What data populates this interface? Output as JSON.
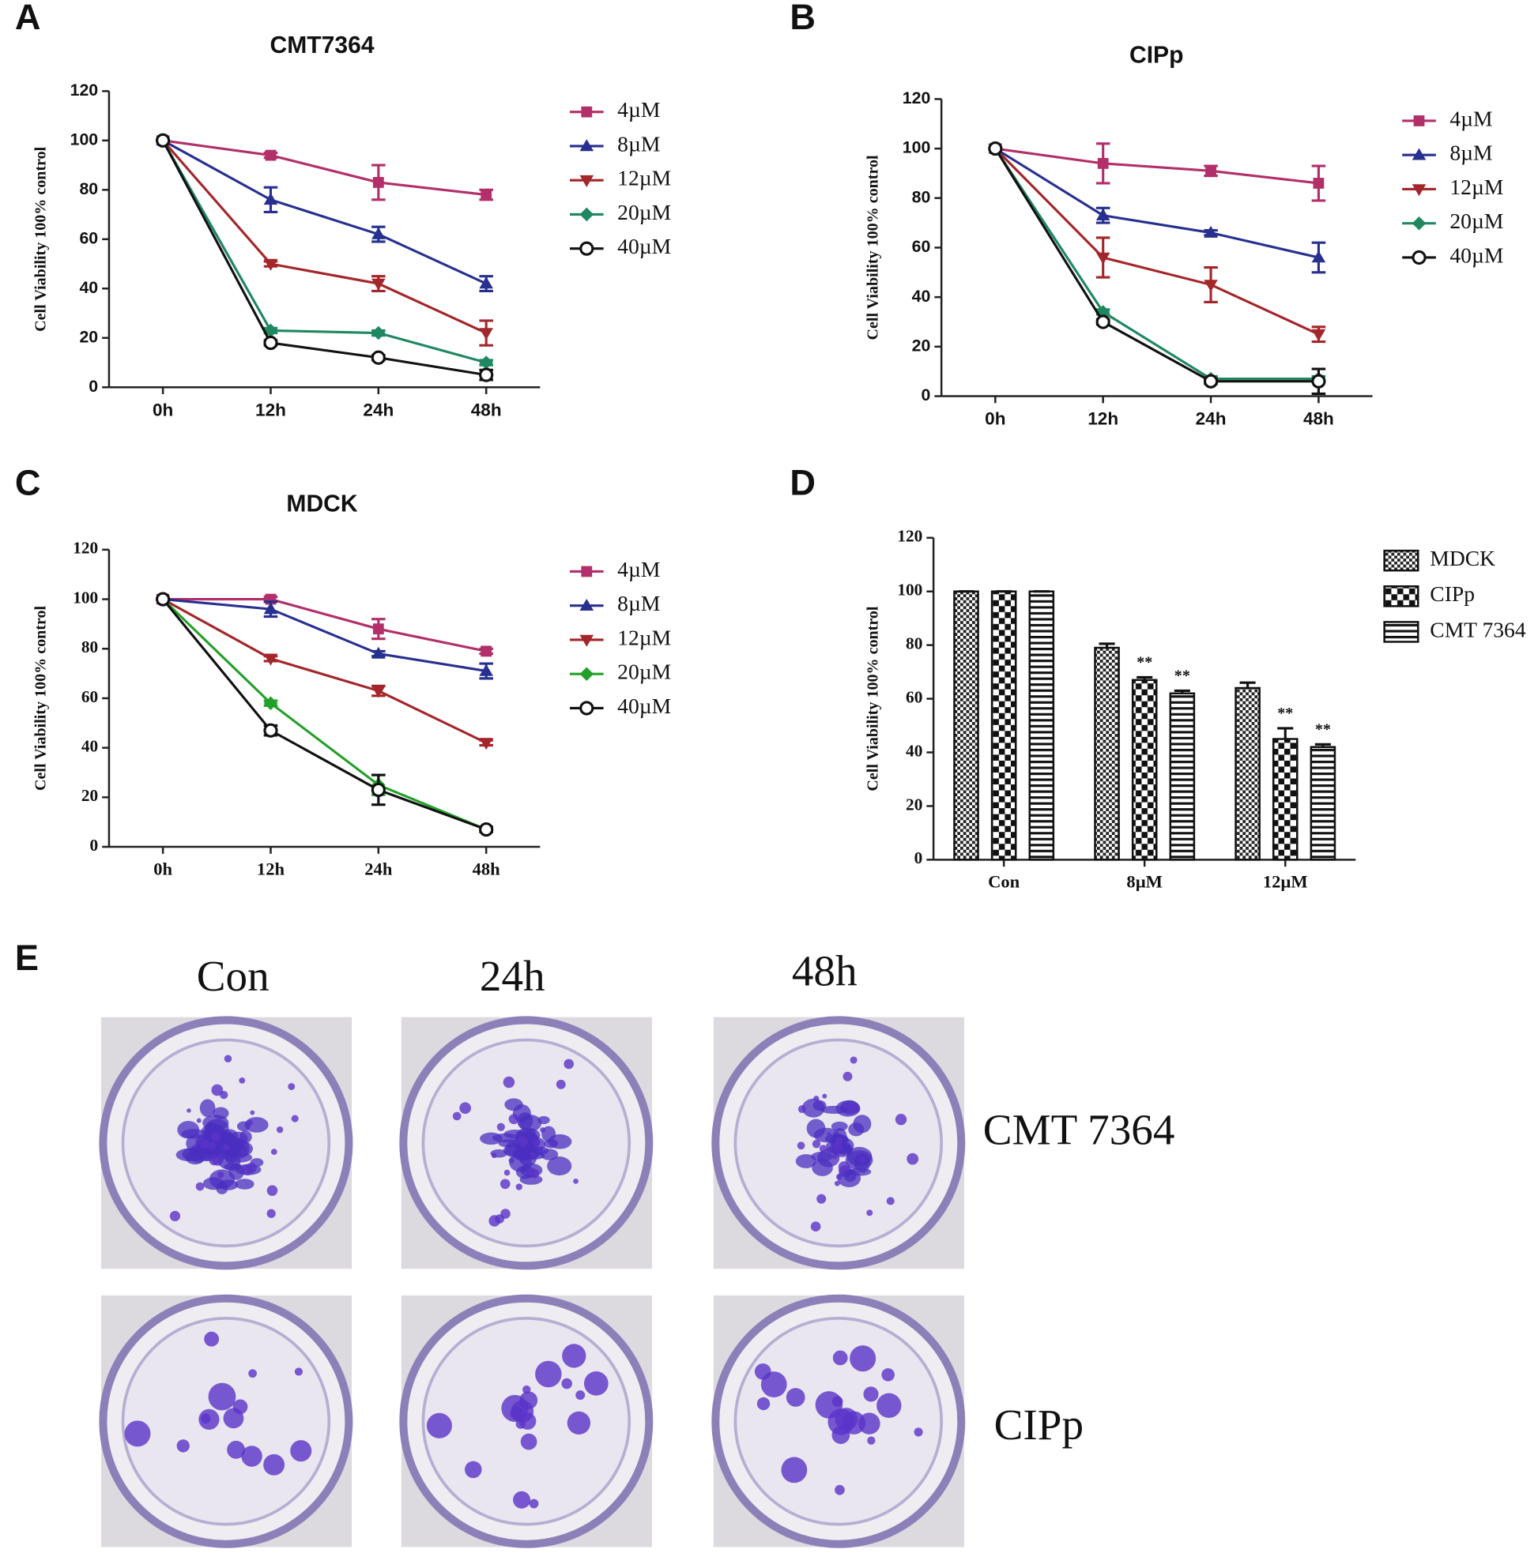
{
  "chart_data": [
    {
      "label": "A",
      "type": "line",
      "title": "CMT7364",
      "y_label": "Cell Viability 100% control",
      "categories": [
        "0h",
        "12h",
        "24h",
        "48h"
      ],
      "ylim": [
        0,
        120
      ],
      "yticks": [
        0,
        20,
        40,
        60,
        80,
        100,
        120
      ],
      "series": [
        {
          "name": "4µM",
          "color": "#b22f6a",
          "marker": "square",
          "values": [
            100,
            94,
            83,
            78
          ],
          "errors": [
            0,
            1,
            7,
            2
          ]
        },
        {
          "name": "8µM",
          "color": "#27308f",
          "marker": "triangle-up",
          "values": [
            100,
            76,
            62,
            42
          ],
          "errors": [
            0,
            5,
            3,
            3
          ]
        },
        {
          "name": "12µM",
          "color": "#a3262a",
          "marker": "triangle-down",
          "values": [
            100,
            50,
            42,
            22
          ],
          "errors": [
            0,
            1,
            3,
            5
          ]
        },
        {
          "name": "20µM",
          "color": "#1f8860",
          "marker": "diamond",
          "values": [
            100,
            23,
            22,
            10
          ],
          "errors": [
            0,
            1,
            1,
            1
          ]
        },
        {
          "name": "40µM",
          "color": "#111111",
          "marker": "circle-open",
          "values": [
            100,
            18,
            12,
            5
          ],
          "errors": [
            0,
            1,
            1,
            2
          ]
        }
      ]
    },
    {
      "label": "B",
      "type": "line",
      "title": "CIPp",
      "y_label": "Cell Viability 100% control",
      "categories": [
        "0h",
        "12h",
        "24h",
        "48h"
      ],
      "ylim": [
        0,
        120
      ],
      "yticks": [
        0,
        20,
        40,
        60,
        80,
        100,
        120
      ],
      "series": [
        {
          "name": "4µM",
          "color": "#b22f6a",
          "marker": "square",
          "values": [
            100,
            94,
            91,
            86
          ],
          "errors": [
            0,
            8,
            2,
            7
          ]
        },
        {
          "name": "8µM",
          "color": "#27308f",
          "marker": "triangle-up",
          "values": [
            100,
            73,
            66,
            56
          ],
          "errors": [
            0,
            3,
            1,
            6
          ]
        },
        {
          "name": "12µM",
          "color": "#a3262a",
          "marker": "triangle-down",
          "values": [
            100,
            56,
            45,
            25
          ],
          "errors": [
            0,
            8,
            7,
            3
          ]
        },
        {
          "name": "20µM",
          "color": "#1f8860",
          "marker": "diamond",
          "values": [
            100,
            34,
            7,
            7
          ],
          "errors": [
            0,
            1,
            1,
            1
          ]
        },
        {
          "name": "40µM",
          "color": "#111111",
          "marker": "circle-open",
          "values": [
            100,
            30,
            6,
            6
          ],
          "errors": [
            0,
            1,
            1,
            5
          ]
        }
      ]
    },
    {
      "label": "C",
      "type": "line",
      "title": "MDCK",
      "y_label": "Cell Viability 100% control",
      "categories": [
        "0h",
        "12h",
        "24h",
        "48h"
      ],
      "ylim": [
        0,
        120
      ],
      "yticks": [
        0,
        20,
        40,
        60,
        80,
        100,
        120
      ],
      "series": [
        {
          "name": "4µM",
          "color": "#b22f6a",
          "marker": "square",
          "values": [
            100,
            100,
            88,
            79
          ],
          "errors": [
            0,
            1,
            4,
            1
          ]
        },
        {
          "name": "8µM",
          "color": "#27308f",
          "marker": "triangle-up",
          "values": [
            100,
            96,
            78,
            71
          ],
          "errors": [
            0,
            3,
            1,
            3
          ]
        },
        {
          "name": "12µM",
          "color": "#a3262a",
          "marker": "triangle-down",
          "values": [
            100,
            76,
            63,
            42
          ],
          "errors": [
            0,
            1,
            2,
            1
          ]
        },
        {
          "name": "20µM",
          "color": "#23a02a",
          "marker": "diamond",
          "values": [
            100,
            58,
            25,
            7
          ],
          "errors": [
            0,
            1,
            4,
            1
          ]
        },
        {
          "name": "40µM",
          "color": "#111111",
          "marker": "circle-open",
          "values": [
            100,
            47,
            23,
            7
          ],
          "errors": [
            0,
            2,
            6,
            1
          ]
        }
      ]
    },
    {
      "label": "D",
      "type": "bar",
      "y_label": "Cell Viability 100% control",
      "categories": [
        "Con",
        "8µM",
        "12µM"
      ],
      "ylim": [
        0,
        120
      ],
      "yticks": [
        0,
        20,
        40,
        60,
        80,
        100,
        120
      ],
      "series": [
        {
          "name": "MDCK",
          "pattern": "fine-check",
          "values": [
            100,
            79,
            64
          ],
          "errors": [
            0,
            1.5,
            2
          ],
          "significance": [
            null,
            null,
            null
          ]
        },
        {
          "name": "CIPp",
          "pattern": "check",
          "values": [
            100,
            67,
            45
          ],
          "errors": [
            0,
            1,
            4
          ],
          "significance": [
            null,
            "**",
            "**"
          ]
        },
        {
          "name": "CMT 7364",
          "pattern": "hlines",
          "values": [
            100,
            62,
            42
          ],
          "errors": [
            0,
            1,
            1
          ],
          "significance": [
            null,
            "**",
            "**"
          ]
        }
      ]
    }
  ],
  "panel_e": {
    "label": "E",
    "columns": [
      "Con",
      "24h",
      "48h"
    ],
    "rows": [
      "CMT 7364",
      "CIPp"
    ]
  }
}
